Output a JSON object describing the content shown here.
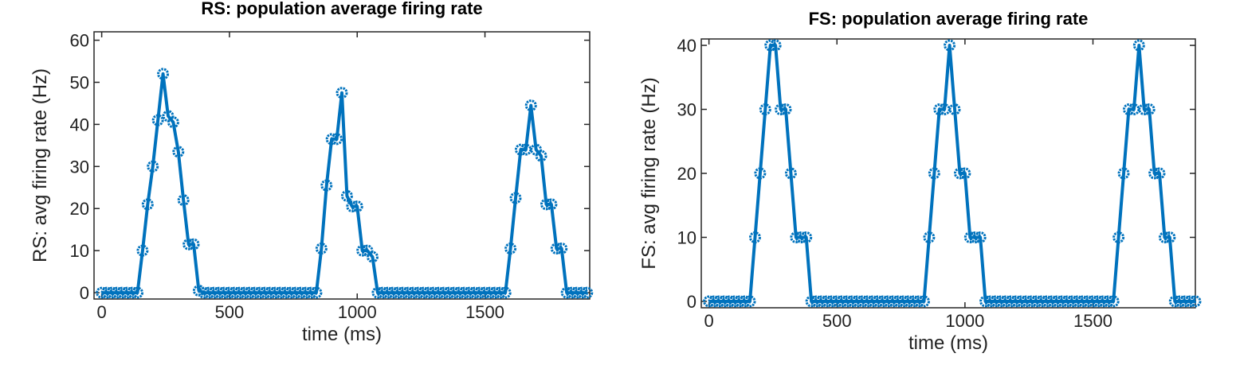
{
  "chart_data": [
    {
      "type": "line",
      "title": "RS: population average firing rate",
      "xlabel": "time (ms)",
      "ylabel": "RS: avg firing rate (Hz)",
      "xlim": [
        -30,
        1910
      ],
      "ylim": [
        -1.5,
        62
      ],
      "xticks": [
        0,
        500,
        1000,
        1500
      ],
      "yticks": [
        0,
        10,
        20,
        30,
        40,
        50,
        60
      ],
      "x": [
        0,
        20,
        40,
        60,
        80,
        100,
        120,
        140,
        160,
        180,
        200,
        220,
        240,
        260,
        280,
        300,
        320,
        340,
        360,
        380,
        400,
        420,
        440,
        460,
        480,
        500,
        520,
        540,
        560,
        580,
        600,
        620,
        640,
        660,
        680,
        700,
        720,
        740,
        760,
        780,
        800,
        820,
        840,
        860,
        880,
        900,
        920,
        940,
        960,
        980,
        1000,
        1020,
        1040,
        1060,
        1080,
        1100,
        1120,
        1140,
        1160,
        1180,
        1200,
        1220,
        1240,
        1260,
        1280,
        1300,
        1320,
        1340,
        1360,
        1380,
        1400,
        1420,
        1440,
        1460,
        1480,
        1500,
        1520,
        1540,
        1560,
        1580,
        1600,
        1620,
        1640,
        1660,
        1680,
        1700,
        1720,
        1740,
        1760,
        1780,
        1800,
        1820,
        1840,
        1860,
        1880,
        1900
      ],
      "series": [
        {
          "color": "#0072bd",
          "values": [
            0,
            0,
            0,
            0,
            0,
            0,
            0,
            0,
            10,
            21,
            30,
            41,
            52,
            42,
            40.5,
            33.5,
            22,
            11.5,
            11.5,
            0.5,
            0,
            0,
            0,
            0,
            0,
            0,
            0,
            0,
            0,
            0,
            0,
            0,
            0,
            0,
            0,
            0,
            0,
            0,
            0,
            0,
            0,
            0,
            0,
            10.5,
            25.5,
            36.5,
            36.5,
            47.5,
            23,
            20.5,
            20.5,
            10,
            10,
            8.5,
            0,
            0,
            0,
            0,
            0,
            0,
            0,
            0,
            0,
            0,
            0,
            0,
            0,
            0,
            0,
            0,
            0,
            0,
            0,
            0,
            0,
            0,
            0,
            0,
            0,
            0,
            10.5,
            22.5,
            34,
            34,
            44.5,
            34,
            32.5,
            21,
            21,
            10.5,
            10.5,
            0,
            0,
            0,
            0,
            0
          ]
        }
      ]
    },
    {
      "type": "line",
      "title": "FS: population average firing rate",
      "xlabel": "time (ms)",
      "ylabel": "FS: avg firing rate (Hz)",
      "xlim": [
        -30,
        1900
      ],
      "ylim": [
        -1,
        41
      ],
      "xticks": [
        0,
        500,
        1000,
        1500
      ],
      "yticks": [
        0,
        10,
        20,
        30,
        40
      ],
      "x": [
        0,
        20,
        40,
        60,
        80,
        100,
        120,
        140,
        160,
        180,
        200,
        220,
        240,
        260,
        280,
        300,
        320,
        340,
        360,
        380,
        400,
        420,
        440,
        460,
        480,
        500,
        520,
        540,
        560,
        580,
        600,
        620,
        640,
        660,
        680,
        700,
        720,
        740,
        760,
        780,
        800,
        820,
        840,
        860,
        880,
        900,
        920,
        940,
        960,
        980,
        1000,
        1020,
        1040,
        1060,
        1080,
        1100,
        1120,
        1140,
        1160,
        1180,
        1200,
        1220,
        1240,
        1260,
        1280,
        1300,
        1320,
        1340,
        1360,
        1380,
        1400,
        1420,
        1440,
        1460,
        1480,
        1500,
        1520,
        1540,
        1560,
        1580,
        1600,
        1620,
        1640,
        1660,
        1680,
        1700,
        1720,
        1740,
        1760,
        1780,
        1800,
        1820,
        1840,
        1860,
        1880,
        1900
      ],
      "series": [
        {
          "color": "#0072bd",
          "values": [
            0,
            0,
            0,
            0,
            0,
            0,
            0,
            0,
            0,
            10,
            20,
            30,
            40,
            40,
            30,
            30,
            20,
            10,
            10,
            10,
            0,
            0,
            0,
            0,
            0,
            0,
            0,
            0,
            0,
            0,
            0,
            0,
            0,
            0,
            0,
            0,
            0,
            0,
            0,
            0,
            0,
            0,
            0,
            10,
            20,
            30,
            30,
            40,
            30,
            20,
            20,
            10,
            10,
            10,
            0,
            0,
            0,
            0,
            0,
            0,
            0,
            0,
            0,
            0,
            0,
            0,
            0,
            0,
            0,
            0,
            0,
            0,
            0,
            0,
            0,
            0,
            0,
            0,
            0,
            0,
            10,
            20,
            30,
            30,
            40,
            30,
            30,
            20,
            20,
            10,
            10,
            0,
            0,
            0,
            0,
            0
          ]
        }
      ]
    }
  ]
}
